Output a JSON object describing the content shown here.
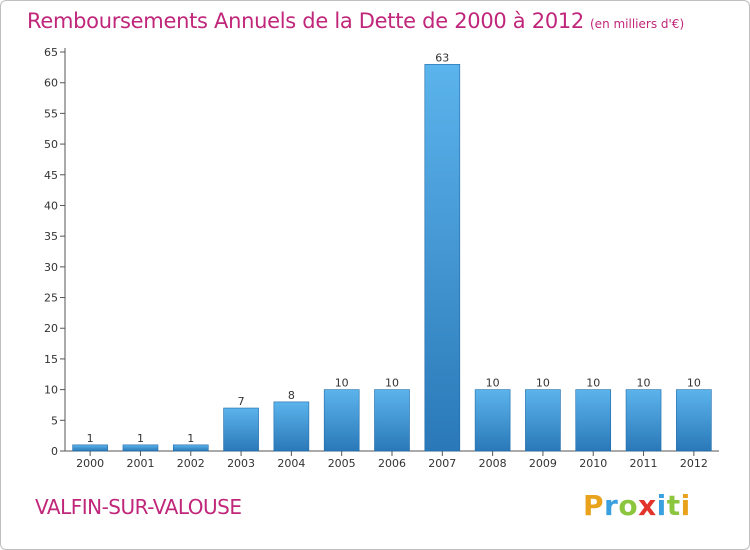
{
  "title": "Remboursements Annuels de la Dette de 2000 à 2012",
  "unit": "(en milliers d'€)",
  "location": "VALFIN-SUR-VALOUSE",
  "logo": {
    "text": "Proxiti",
    "letters": [
      {
        "ch": "P",
        "color": "#e8a21c"
      },
      {
        "ch": "r",
        "color": "#3aa0e0"
      },
      {
        "ch": "o",
        "color": "#8cc63f"
      },
      {
        "ch": "x",
        "color": "#e2342b"
      },
      {
        "ch": "i",
        "color": "#3aa0e0"
      },
      {
        "ch": "t",
        "color": "#8cc63f"
      },
      {
        "ch": "i",
        "color": "#e8a21c"
      }
    ]
  },
  "colors": {
    "title": "#c0267a",
    "bar_top": "#5cb4ec",
    "bar_bottom": "#2a78b8",
    "bar_edge": "#1f6aa8"
  },
  "chart_data": {
    "type": "bar",
    "categories": [
      "2000",
      "2001",
      "2002",
      "2003",
      "2004",
      "2005",
      "2006",
      "2007",
      "2008",
      "2009",
      "2010",
      "2011",
      "2012"
    ],
    "values": [
      1,
      1,
      1,
      7,
      8,
      10,
      10,
      63,
      10,
      10,
      10,
      10,
      10
    ],
    "ylim": [
      0,
      65
    ],
    "yticks": [
      0,
      5,
      10,
      15,
      20,
      25,
      30,
      35,
      40,
      45,
      50,
      55,
      60,
      65
    ],
    "grid": false
  }
}
